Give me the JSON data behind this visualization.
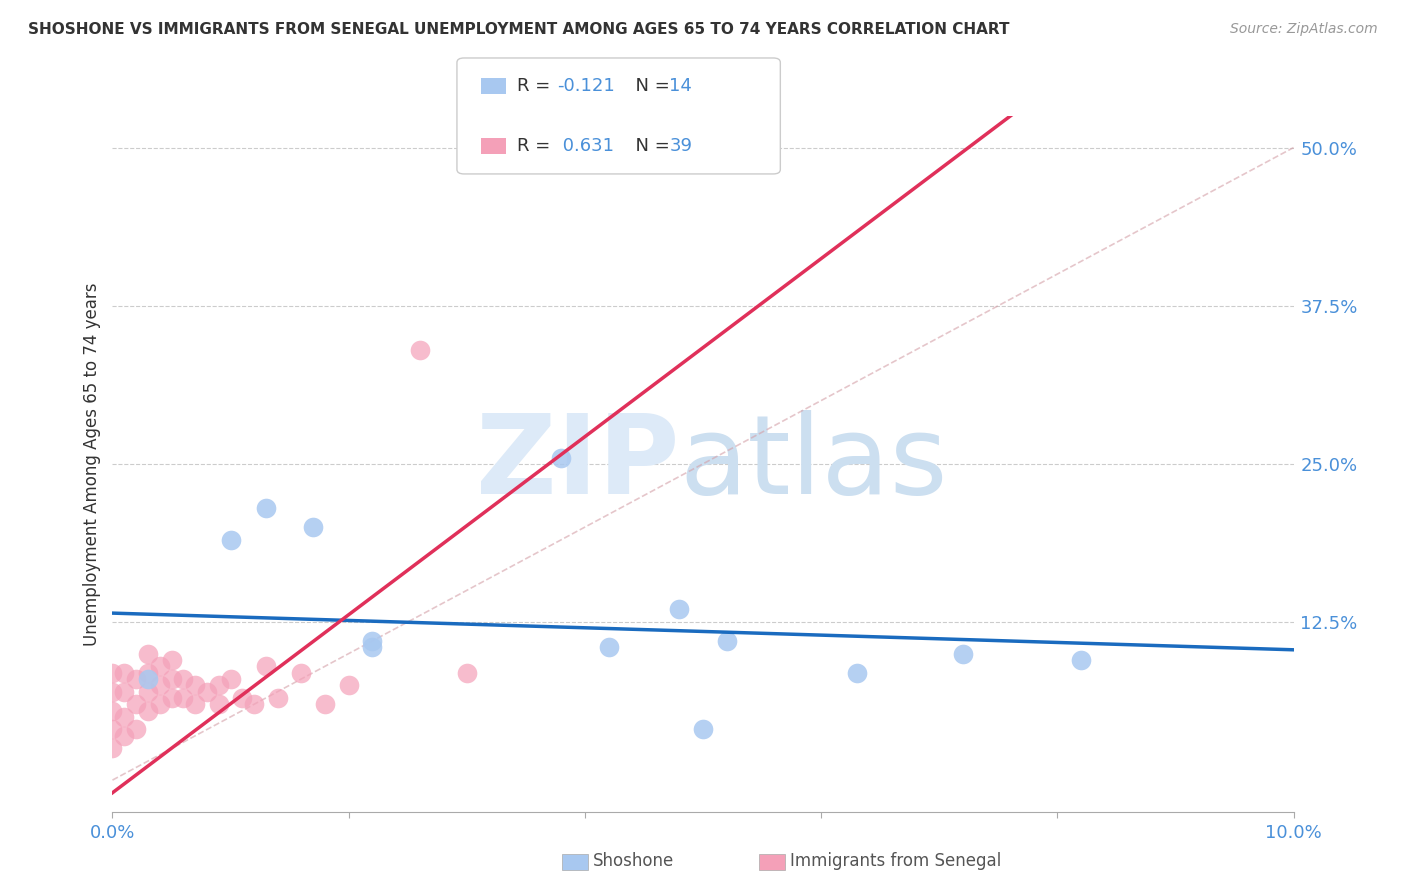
{
  "title": "SHOSHONE VS IMMIGRANTS FROM SENEGAL UNEMPLOYMENT AMONG AGES 65 TO 74 YEARS CORRELATION CHART",
  "source": "Source: ZipAtlas.com",
  "ylabel": "Unemployment Among Ages 65 to 74 years",
  "x_min": 0.0,
  "x_max": 0.1,
  "y_min": -0.025,
  "y_max": 0.525,
  "color_shoshone": "#a8c8f0",
  "color_senegal": "#f4a0b8",
  "color_shoshone_line": "#1a6bbf",
  "color_senegal_line": "#e0305a",
  "color_diagonal": "#cccccc",
  "shoshone_x": [
    0.003,
    0.01,
    0.013,
    0.017,
    0.022,
    0.022,
    0.038,
    0.048,
    0.05,
    0.052,
    0.063,
    0.072,
    0.082,
    0.042
  ],
  "shoshone_y": [
    0.08,
    0.19,
    0.215,
    0.2,
    0.11,
    0.105,
    0.255,
    0.135,
    0.04,
    0.11,
    0.085,
    0.1,
    0.095,
    0.105
  ],
  "senegal_x": [
    0.0,
    0.0,
    0.0,
    0.0,
    0.0,
    0.001,
    0.001,
    0.001,
    0.001,
    0.002,
    0.002,
    0.002,
    0.003,
    0.003,
    0.003,
    0.003,
    0.004,
    0.004,
    0.004,
    0.005,
    0.005,
    0.005,
    0.006,
    0.006,
    0.007,
    0.007,
    0.008,
    0.009,
    0.009,
    0.01,
    0.011,
    0.012,
    0.013,
    0.014,
    0.016,
    0.018,
    0.02,
    0.026,
    0.03
  ],
  "senegal_y": [
    0.025,
    0.04,
    0.055,
    0.07,
    0.085,
    0.035,
    0.05,
    0.07,
    0.085,
    0.04,
    0.06,
    0.08,
    0.055,
    0.07,
    0.085,
    0.1,
    0.06,
    0.075,
    0.09,
    0.065,
    0.08,
    0.095,
    0.065,
    0.08,
    0.06,
    0.075,
    0.07,
    0.06,
    0.075,
    0.08,
    0.065,
    0.06,
    0.09,
    0.065,
    0.085,
    0.06,
    0.075,
    0.34,
    0.085
  ],
  "shoshone_trend_x": [
    0.0,
    0.1
  ],
  "shoshone_trend_y": [
    0.132,
    0.103
  ],
  "senegal_trend_x": [
    0.0,
    0.027
  ],
  "senegal_trend_y": [
    -0.01,
    0.18
  ]
}
